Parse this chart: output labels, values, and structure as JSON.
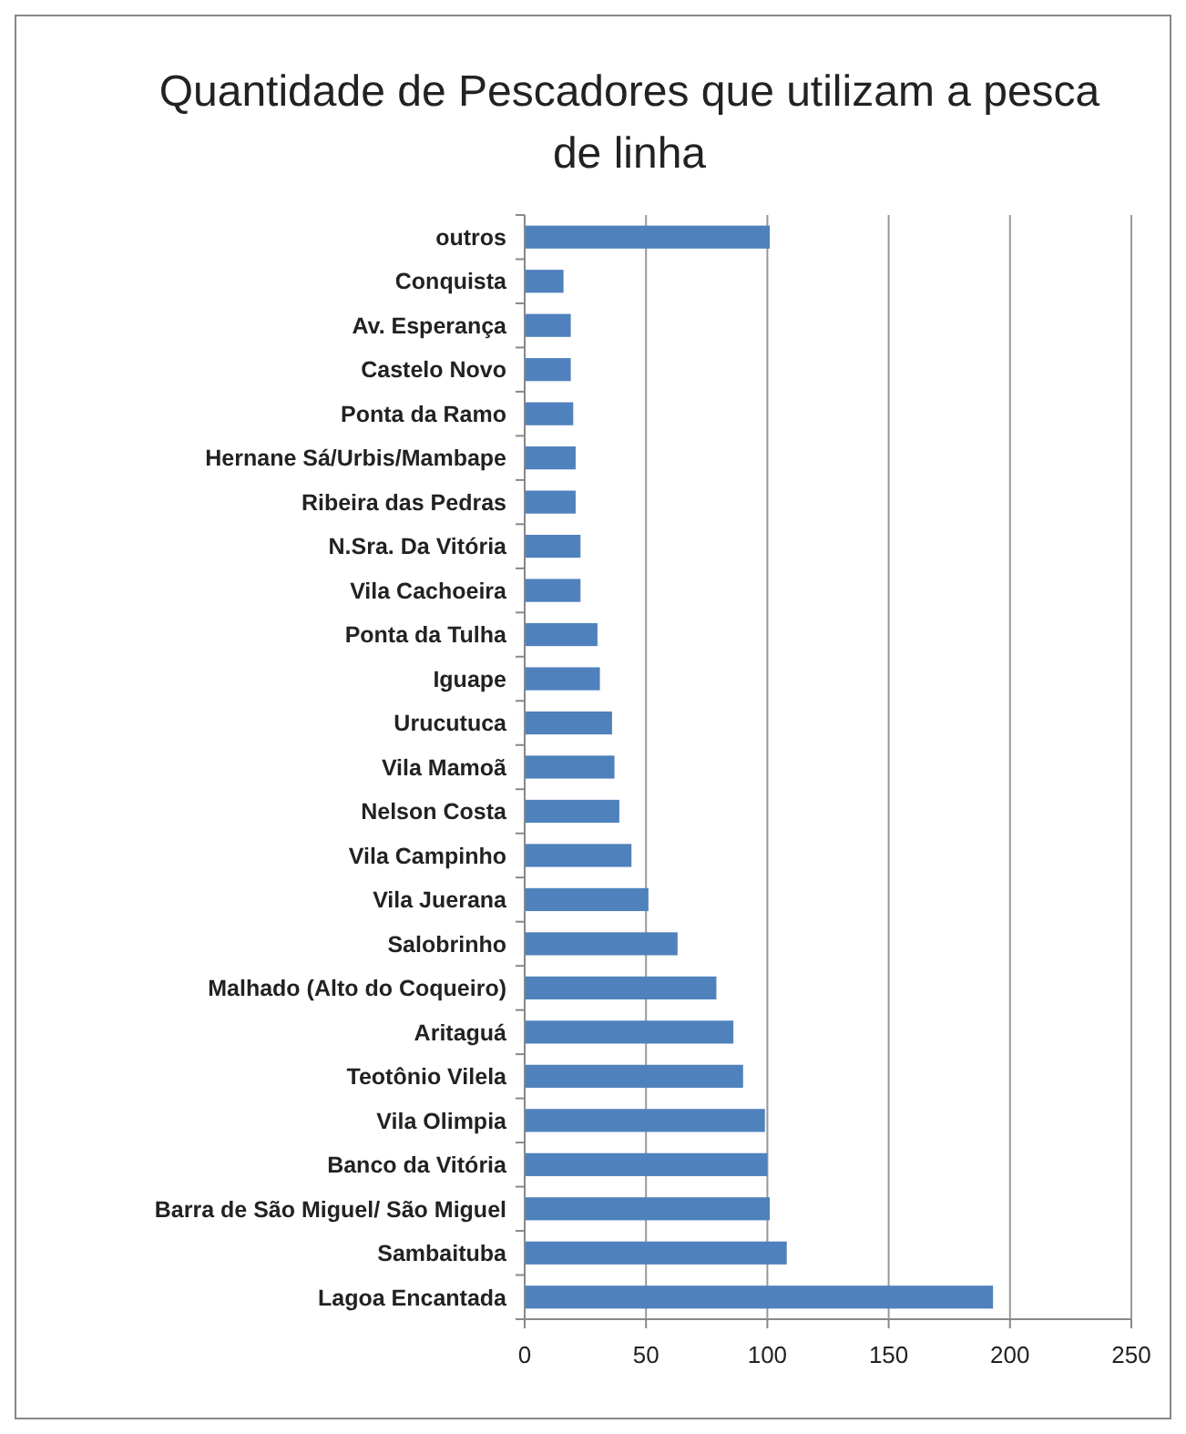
{
  "chart_data": {
    "type": "bar",
    "orientation": "horizontal",
    "title": "Quantidade de Pescadores que utilizam a pesca de linha",
    "categories": [
      "outros",
      "Conquista",
      "Av. Esperança",
      "Castelo Novo",
      "Ponta da Ramo",
      "Hernane Sá/Urbis/Mambape",
      "Ribeira das Pedras",
      "N.Sra. Da Vitória",
      "Vila Cachoeira",
      "Ponta da Tulha",
      "Iguape",
      "Urucutuca",
      "Vila Mamoã",
      "Nelson Costa",
      "Vila Campinho",
      "Vila Juerana",
      "Salobrinho",
      "Malhado (Alto do Coqueiro)",
      "Aritaguá",
      "Teotônio Vilela",
      "Vila Olimpia",
      "Banco da Vitória",
      "Barra de São Miguel/ São Miguel",
      "Sambaituba",
      "Lagoa Encantada"
    ],
    "values": [
      101,
      16,
      19,
      19,
      20,
      21,
      21,
      23,
      23,
      30,
      31,
      36,
      37,
      39,
      44,
      51,
      63,
      79,
      86,
      90,
      99,
      100,
      101,
      108,
      193
    ],
    "color": "#4f81bd",
    "xlim": [
      0,
      250
    ],
    "xticks": [
      0,
      50,
      100,
      150,
      200,
      250
    ],
    "grid": "x"
  }
}
